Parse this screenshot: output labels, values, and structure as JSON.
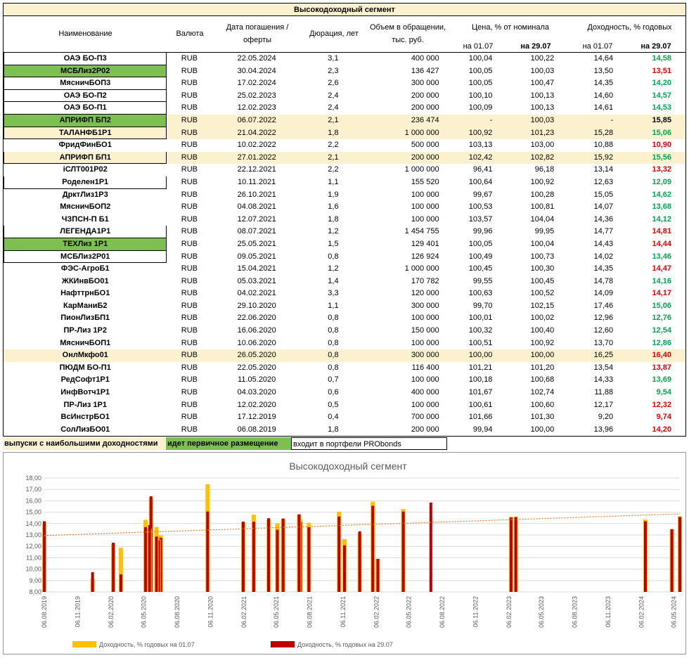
{
  "table": {
    "title": "Высокодоходный сегмент",
    "headers": {
      "name": "Наименование",
      "currency": "Валюта",
      "maturity_line1": "Дата погашения /",
      "maturity_line2": "оферты",
      "duration": "Дюрация, лет",
      "volume_line1": "Объем в обращении,",
      "volume_line2": "тыс. руб.",
      "price": "Цена, % от номинала",
      "yield": "Доходность, % годовых",
      "price_d1": "на 01.07",
      "price_d2": "на 29.07",
      "yield_d1": "на 01.07",
      "yield_d2": "на 29.07"
    },
    "rows": [
      {
        "name": "ОАЭ  БО-П3",
        "cur": "RUB",
        "date": "22.05.2024",
        "dur": "3,1",
        "vol": "400 000",
        "p1": "100,04",
        "p2": "100,22",
        "y1": "14,64",
        "y2": "14,58",
        "y2c": "green",
        "style": "box"
      },
      {
        "name": "МСБЛиз2Р02",
        "cur": "RUB",
        "date": "30.04.2024",
        "dur": "2,3",
        "vol": "136 427",
        "p1": "100,05",
        "p2": "100,03",
        "y1": "13,50",
        "y2": "13,51",
        "y2c": "red",
        "style": "green"
      },
      {
        "name": "МясничБОП3",
        "cur": "RUB",
        "date": "17.02.2024",
        "dur": "2,6",
        "vol": "300 000",
        "p1": "100,05",
        "p2": "100,47",
        "y1": "14,35",
        "y2": "14,20",
        "y2c": "green",
        "style": "box"
      },
      {
        "name": "ОАЭ  БО-П2",
        "cur": "RUB",
        "date": "25.02.2023",
        "dur": "2,4",
        "vol": "200 000",
        "p1": "100,10",
        "p2": "100,13",
        "y1": "14,60",
        "y2": "14,57",
        "y2c": "green",
        "style": "box"
      },
      {
        "name": "ОАЭ  БО-П1",
        "cur": "RUB",
        "date": "12.02.2023",
        "dur": "2,4",
        "vol": "200 000",
        "p1": "100,09",
        "p2": "100,13",
        "y1": "14,61",
        "y2": "14,53",
        "y2c": "green",
        "style": "box"
      },
      {
        "name": "АПРИФП БП2",
        "cur": "RUB",
        "date": "06.07.2022",
        "dur": "2,1",
        "vol": "236 474",
        "p1": "-",
        "p2": "100,03",
        "y1": "-",
        "y2": "15,85",
        "y2c": "black",
        "style": "green",
        "row": "yellow"
      },
      {
        "name": "ТАЛАНФБ1Р1",
        "cur": "RUB",
        "date": "21.04.2022",
        "dur": "1,8",
        "vol": "1 000 000",
        "p1": "100,92",
        "p2": "101,23",
        "y1": "15,28",
        "y2": "15,06",
        "y2c": "green",
        "style": "box",
        "row": "yellow"
      },
      {
        "name": "ФридФинБО1",
        "cur": "RUB",
        "date": "10.02.2022",
        "dur": "2,2",
        "vol": "500 000",
        "p1": "103,13",
        "p2": "103,00",
        "y1": "10,88",
        "y2": "10,90",
        "y2c": "red",
        "style": "plain"
      },
      {
        "name": "АПРИФП БП1",
        "cur": "RUB",
        "date": "27.01.2022",
        "dur": "2,1",
        "vol": "200 000",
        "p1": "102,42",
        "p2": "102,82",
        "y1": "15,92",
        "y2": "15,56",
        "y2c": "green",
        "style": "box",
        "row": "yellow"
      },
      {
        "name": "iСЛТ001Р02",
        "cur": "RUB",
        "date": "22.12.2021",
        "dur": "2,2",
        "vol": "1 000 000",
        "p1": "96,41",
        "p2": "96,18",
        "y1": "13,14",
        "y2": "13,32",
        "y2c": "red",
        "style": "plain"
      },
      {
        "name": "Роделен1Р1",
        "cur": "RUB",
        "date": "10.11.2021",
        "dur": "1,1",
        "vol": "155 520",
        "p1": "100,64",
        "p2": "100,92",
        "y1": "12,63",
        "y2": "12,09",
        "y2c": "green",
        "style": "box"
      },
      {
        "name": "ДрктЛиз1Р3",
        "cur": "RUB",
        "date": "26.10.2021",
        "dur": "1,9",
        "vol": "100 000",
        "p1": "99,67",
        "p2": "100,28",
        "y1": "15,05",
        "y2": "14,62",
        "y2c": "green",
        "style": "plain"
      },
      {
        "name": "МясничБОП2",
        "cur": "RUB",
        "date": "04.08.2021",
        "dur": "1,6",
        "vol": "100 000",
        "p1": "100,53",
        "p2": "100,81",
        "y1": "14,07",
        "y2": "13,68",
        "y2c": "green",
        "style": "plain"
      },
      {
        "name": "ЧЗПСН-П Б1",
        "cur": "RUB",
        "date": "12.07.2021",
        "dur": "1,8",
        "vol": "100 000",
        "p1": "103,57",
        "p2": "104,04",
        "y1": "14,36",
        "y2": "14,12",
        "y2c": "green",
        "style": "plain"
      },
      {
        "name": "ЛЕГЕНДА1Р1",
        "cur": "RUB",
        "date": "08.07.2021",
        "dur": "1,2",
        "vol": "1 454 755",
        "p1": "99,96",
        "p2": "99,95",
        "y1": "14,77",
        "y2": "14,81",
        "y2c": "red",
        "style": "box"
      },
      {
        "name": "ТЕХЛиз 1Р1",
        "cur": "RUB",
        "date": "25.05.2021",
        "dur": "1,5",
        "vol": "129 401",
        "p1": "100,05",
        "p2": "100,04",
        "y1": "14,43",
        "y2": "14,44",
        "y2c": "red",
        "style": "green"
      },
      {
        "name": "МСБЛиз2Р01",
        "cur": "RUB",
        "date": "09.05.2021",
        "dur": "0,8",
        "vol": "126 924",
        "p1": "100,49",
        "p2": "100,73",
        "y1": "14,02",
        "y2": "13,46",
        "y2c": "green",
        "style": "box"
      },
      {
        "name": "ФЭС-АгроБ1",
        "cur": "RUB",
        "date": "15.04.2021",
        "dur": "1,2",
        "vol": "1 000 000",
        "p1": "100,45",
        "p2": "100,30",
        "y1": "14,35",
        "y2": "14,47",
        "y2c": "red",
        "style": "plain"
      },
      {
        "name": "ЖКИнвБО01",
        "cur": "RUB",
        "date": "05.03.2021",
        "dur": "1,4",
        "vol": "170 782",
        "p1": "99,55",
        "p2": "100,45",
        "y1": "14,78",
        "y2": "14,16",
        "y2c": "green",
        "style": "plain"
      },
      {
        "name": "НафттрнБО1",
        "cur": "RUB",
        "date": "04.02.2021",
        "dur": "3,3",
        "vol": "120 000",
        "p1": "100,63",
        "p2": "100,52",
        "y1": "14,09",
        "y2": "14,17",
        "y2c": "red",
        "style": "plain"
      },
      {
        "name": "КарМаниБ2",
        "cur": "RUB",
        "date": "29.10.2020",
        "dur": "1,1",
        "vol": "300 000",
        "p1": "99,70",
        "p2": "102,15",
        "y1": "17,46",
        "y2": "15,06",
        "y2c": "green",
        "style": "plain"
      },
      {
        "name": "ПионЛизБП1",
        "cur": "RUB",
        "date": "22.06.2020",
        "dur": "0,8",
        "vol": "100 000",
        "p1": "100,01",
        "p2": "100,02",
        "y1": "12,96",
        "y2": "12,76",
        "y2c": "green",
        "style": "plain"
      },
      {
        "name": "ПР-Лиз 1Р2",
        "cur": "RUB",
        "date": "16.06.2020",
        "dur": "0,8",
        "vol": "150 000",
        "p1": "100,32",
        "p2": "100,40",
        "y1": "12,60",
        "y2": "12,54",
        "y2c": "green",
        "style": "plain"
      },
      {
        "name": "МясничБОП1",
        "cur": "RUB",
        "date": "10.06.2020",
        "dur": "0,8",
        "vol": "100 000",
        "p1": "100,51",
        "p2": "100,92",
        "y1": "13,70",
        "y2": "12,86",
        "y2c": "green",
        "style": "plain"
      },
      {
        "name": "ОнлМкфо01",
        "cur": "RUB",
        "date": "26.05.2020",
        "dur": "0,8",
        "vol": "300 000",
        "p1": "100,00",
        "p2": "100,00",
        "y1": "16,25",
        "y2": "16,40",
        "y2c": "red",
        "style": "plain",
        "row": "yellow"
      },
      {
        "name": "ПЮДМ БО-П1",
        "cur": "RUB",
        "date": "22.05.2020",
        "dur": "0,8",
        "vol": "116 400",
        "p1": "101,21",
        "p2": "101,20",
        "y1": "13,54",
        "y2": "13,87",
        "y2c": "red",
        "style": "plain"
      },
      {
        "name": "РедСофт1Р1",
        "cur": "RUB",
        "date": "11.05.2020",
        "dur": "0,7",
        "vol": "100 000",
        "p1": "100,18",
        "p2": "100,68",
        "y1": "14,33",
        "y2": "13,69",
        "y2c": "green",
        "style": "plain"
      },
      {
        "name": "ИнфВотч1Р1",
        "cur": "RUB",
        "date": "04.03.2020",
        "dur": "0,6",
        "vol": "400 000",
        "p1": "101,67",
        "p2": "102,74",
        "y1": "11,88",
        "y2": "9,54",
        "y2c": "green",
        "style": "plain"
      },
      {
        "name": "ПР-Лиз 1Р1",
        "cur": "RUB",
        "date": "12.02.2020",
        "dur": "0,5",
        "vol": "100 000",
        "p1": "100,61",
        "p2": "100,60",
        "y1": "12,17",
        "y2": "12,32",
        "y2c": "red",
        "style": "plain"
      },
      {
        "name": "ВсИнстрБО1",
        "cur": "RUB",
        "date": "17.12.2019",
        "dur": "0,4",
        "vol": "700 000",
        "p1": "101,66",
        "p2": "101,30",
        "y1": "9,20",
        "y2": "9,74",
        "y2c": "red",
        "style": "plain"
      },
      {
        "name": "СолЛизБО01",
        "cur": "RUB",
        "date": "06.08.2019",
        "dur": "1,8",
        "vol": "200 000",
        "p1": "99,94",
        "p2": "100,00",
        "y1": "13,96",
        "y2": "14,20",
        "y2c": "red",
        "style": "plain"
      }
    ]
  },
  "legend_row": {
    "top_yield": "выпуски с наибольшими доходностями",
    "placement": "идет первичное размещение",
    "portfolio": "входит в портфели PRObonds"
  },
  "colors": {
    "highlight_yellow": "#fcf1cf",
    "highlight_green": "#7cc14f",
    "text_green": "#00a550",
    "text_red": "#e00000",
    "bar_yellow": "#ffc000",
    "bar_red": "#c00000",
    "trend": "#ed7d31"
  },
  "chart_data": {
    "type": "bar",
    "title": "Высокодоходный сегмент",
    "ylim": [
      8,
      18
    ],
    "yticks": [
      "8,00",
      "9,00",
      "10,00",
      "11,00",
      "12,00",
      "13,00",
      "14,00",
      "15,00",
      "16,00",
      "17,00",
      "18,00"
    ],
    "x_axis": "date",
    "x_range": [
      "2019-08-06",
      "2024-05-22"
    ],
    "xticks": [
      "06.08.2019",
      "06.11.2019",
      "06.02.2020",
      "06.05.2020",
      "06.08.2020",
      "06.11.2020",
      "06.02.2021",
      "06.05.2021",
      "06.08.2021",
      "06.11.2021",
      "06.02.2022",
      "06.05.2022",
      "06.08.2022",
      "06.11.2022",
      "06.02.2023",
      "06.05.2023",
      "06.08.2023",
      "06.11.2023",
      "06.02.2024",
      "06.05.2024"
    ],
    "series": [
      {
        "name": "Доходность, % годовых на 01.07",
        "color": "#ffc000"
      },
      {
        "name": "Доходность, % годовых на 29.07",
        "color": "#c00000"
      }
    ],
    "points": [
      {
        "x": "2024-05-22",
        "y1": 14.64,
        "y2": 14.58
      },
      {
        "x": "2024-04-30",
        "y1": 13.5,
        "y2": 13.51
      },
      {
        "x": "2024-02-17",
        "y1": 14.35,
        "y2": 14.2
      },
      {
        "x": "2023-02-25",
        "y1": 14.6,
        "y2": 14.57
      },
      {
        "x": "2023-02-12",
        "y1": 14.61,
        "y2": 14.53
      },
      {
        "x": "2022-07-06",
        "y1": null,
        "y2": 15.85
      },
      {
        "x": "2022-04-21",
        "y1": 15.28,
        "y2": 15.06
      },
      {
        "x": "2022-02-10",
        "y1": 10.88,
        "y2": 10.9
      },
      {
        "x": "2022-01-27",
        "y1": 15.92,
        "y2": 15.56
      },
      {
        "x": "2021-12-22",
        "y1": 13.14,
        "y2": 13.32
      },
      {
        "x": "2021-11-10",
        "y1": 12.63,
        "y2": 12.09
      },
      {
        "x": "2021-10-26",
        "y1": 15.05,
        "y2": 14.62
      },
      {
        "x": "2021-08-04",
        "y1": 14.07,
        "y2": 13.68
      },
      {
        "x": "2021-07-12",
        "y1": 14.36,
        "y2": 14.12
      },
      {
        "x": "2021-07-08",
        "y1": 14.77,
        "y2": 14.81
      },
      {
        "x": "2021-05-25",
        "y1": 14.43,
        "y2": 14.44
      },
      {
        "x": "2021-05-09",
        "y1": 14.02,
        "y2": 13.46
      },
      {
        "x": "2021-04-15",
        "y1": 14.35,
        "y2": 14.47
      },
      {
        "x": "2021-03-05",
        "y1": 14.78,
        "y2": 14.16
      },
      {
        "x": "2021-02-04",
        "y1": 14.09,
        "y2": 14.17
      },
      {
        "x": "2020-10-29",
        "y1": 17.46,
        "y2": 15.06
      },
      {
        "x": "2020-06-22",
        "y1": 12.96,
        "y2": 12.76
      },
      {
        "x": "2020-06-16",
        "y1": 12.6,
        "y2": 12.54
      },
      {
        "x": "2020-06-10",
        "y1": 13.7,
        "y2": 12.86
      },
      {
        "x": "2020-05-26",
        "y1": 16.25,
        "y2": 16.4
      },
      {
        "x": "2020-05-22",
        "y1": 13.54,
        "y2": 13.87
      },
      {
        "x": "2020-05-11",
        "y1": 14.33,
        "y2": 13.69
      },
      {
        "x": "2020-03-04",
        "y1": 11.88,
        "y2": 9.54
      },
      {
        "x": "2020-02-12",
        "y1": 12.17,
        "y2": 12.32
      },
      {
        "x": "2019-12-17",
        "y1": 9.2,
        "y2": 9.74
      },
      {
        "x": "2019-08-06",
        "y1": 13.96,
        "y2": 14.2
      }
    ],
    "trendline": {
      "from": 12.95,
      "to": 14.85,
      "style": "dotted"
    },
    "grid": "horizontal",
    "legend_position": "bottom"
  }
}
